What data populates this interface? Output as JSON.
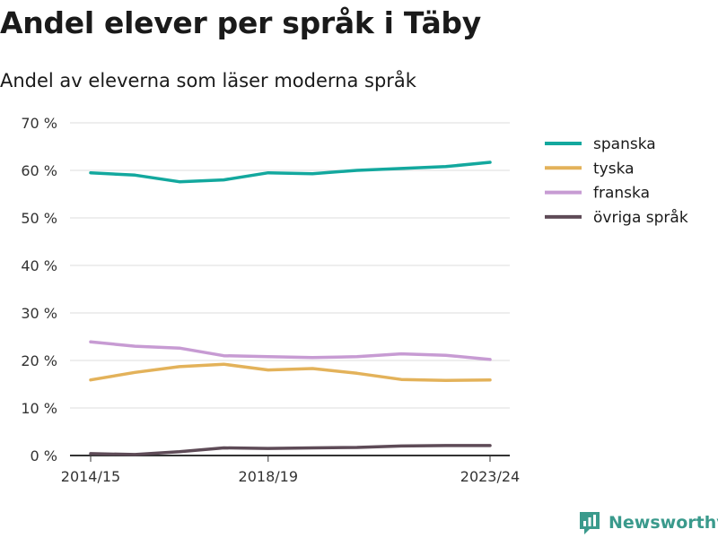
{
  "header": {
    "title": "Andel elever per språk i Täby",
    "subtitle": "Andel av eleverna som läser moderna språk"
  },
  "brand": {
    "name": "Newsworthy",
    "icon": "newsworthy-logo-icon",
    "color": "#3a9a8c"
  },
  "chart_data": {
    "type": "line",
    "title": "Andel elever per språk i Täby",
    "subtitle": "Andel av eleverna som läser moderna språk",
    "xlabel": "",
    "ylabel": "",
    "x": [
      "2014/15",
      "2015/16",
      "2016/17",
      "2017/18",
      "2018/19",
      "2019/20",
      "2020/21",
      "2021/22",
      "2022/23",
      "2023/24"
    ],
    "x_tick_labels": [
      "2014/15",
      "2018/19",
      "2023/24"
    ],
    "ylim": [
      0,
      70
    ],
    "y_ticks": [
      0,
      10,
      20,
      30,
      40,
      50,
      60,
      70
    ],
    "y_tick_labels": [
      "0 %",
      "10 %",
      "20 %",
      "30 %",
      "40 %",
      "50 %",
      "60 %",
      "70 %"
    ],
    "grid": true,
    "legend_position": "right",
    "series": [
      {
        "name": "spanska",
        "color": "#13a89e",
        "values": [
          59.5,
          59.0,
          57.6,
          58.0,
          59.5,
          59.3,
          60.0,
          60.4,
          60.8,
          61.7
        ]
      },
      {
        "name": "tyska",
        "color": "#e3b25a",
        "values": [
          15.9,
          17.5,
          18.7,
          19.2,
          18.0,
          18.3,
          17.3,
          16.0,
          15.8,
          15.9
        ]
      },
      {
        "name": "franska",
        "color": "#c79bd3",
        "values": [
          23.9,
          23.0,
          22.6,
          21.0,
          20.8,
          20.6,
          20.8,
          21.4,
          21.1,
          20.2
        ]
      },
      {
        "name": "övriga språk",
        "color": "#5e4b57",
        "values": [
          0.4,
          0.2,
          0.8,
          1.6,
          1.5,
          1.6,
          1.7,
          2.0,
          2.1,
          2.1
        ]
      }
    ]
  }
}
